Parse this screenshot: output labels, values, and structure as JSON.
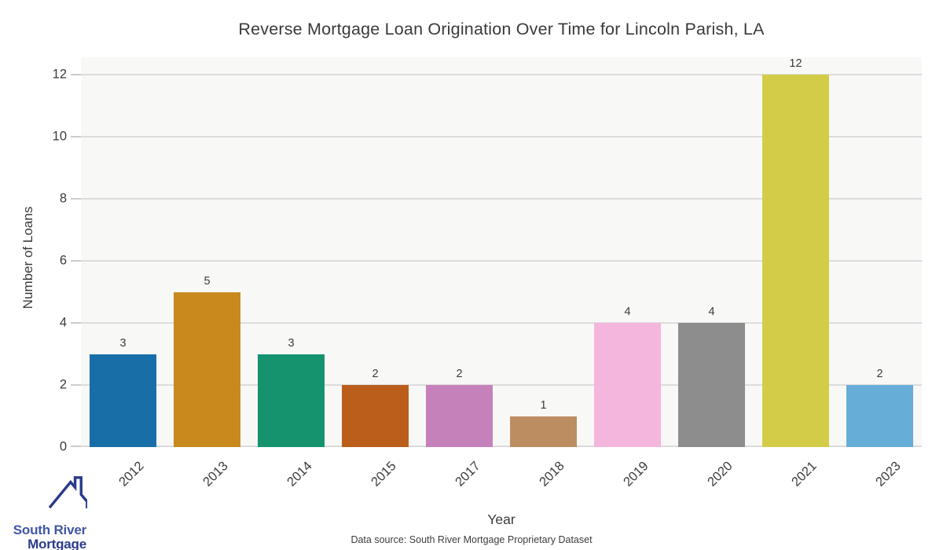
{
  "chart_data": {
    "type": "bar",
    "title": "Reverse Mortgage Loan Origination Over Time for Lincoln Parish, LA",
    "xlabel": "Year",
    "ylabel": "Number of Loans",
    "categories": [
      "2012",
      "2013",
      "2014",
      "2015",
      "2017",
      "2018",
      "2019",
      "2020",
      "2021",
      "2023"
    ],
    "values": [
      3,
      5,
      3,
      2,
      2,
      1,
      4,
      4,
      12,
      2
    ],
    "bar_colors": [
      "#186fa8",
      "#c8891d",
      "#15936f",
      "#bb5e1c",
      "#c581ba",
      "#bd8d62",
      "#f4b6dd",
      "#8d8d8d",
      "#d3cc49",
      "#66add8"
    ],
    "yticks": [
      0,
      2,
      4,
      6,
      8,
      10,
      12
    ],
    "ylim": [
      0,
      12.56
    ],
    "grid": "horizontal",
    "legend": "none",
    "plot_bg_color": "#f8f8f7",
    "gridline_color": "#dcdcdc"
  },
  "footer": {
    "data_source": "Data source: South River Mortgage Proprietary Dataset"
  },
  "logo": {
    "line1": "South River",
    "line2": "Mortgage",
    "line1_color": "#4156a5",
    "line2_color": "#2b3a8c",
    "icon_color": "#2b3a8c"
  }
}
